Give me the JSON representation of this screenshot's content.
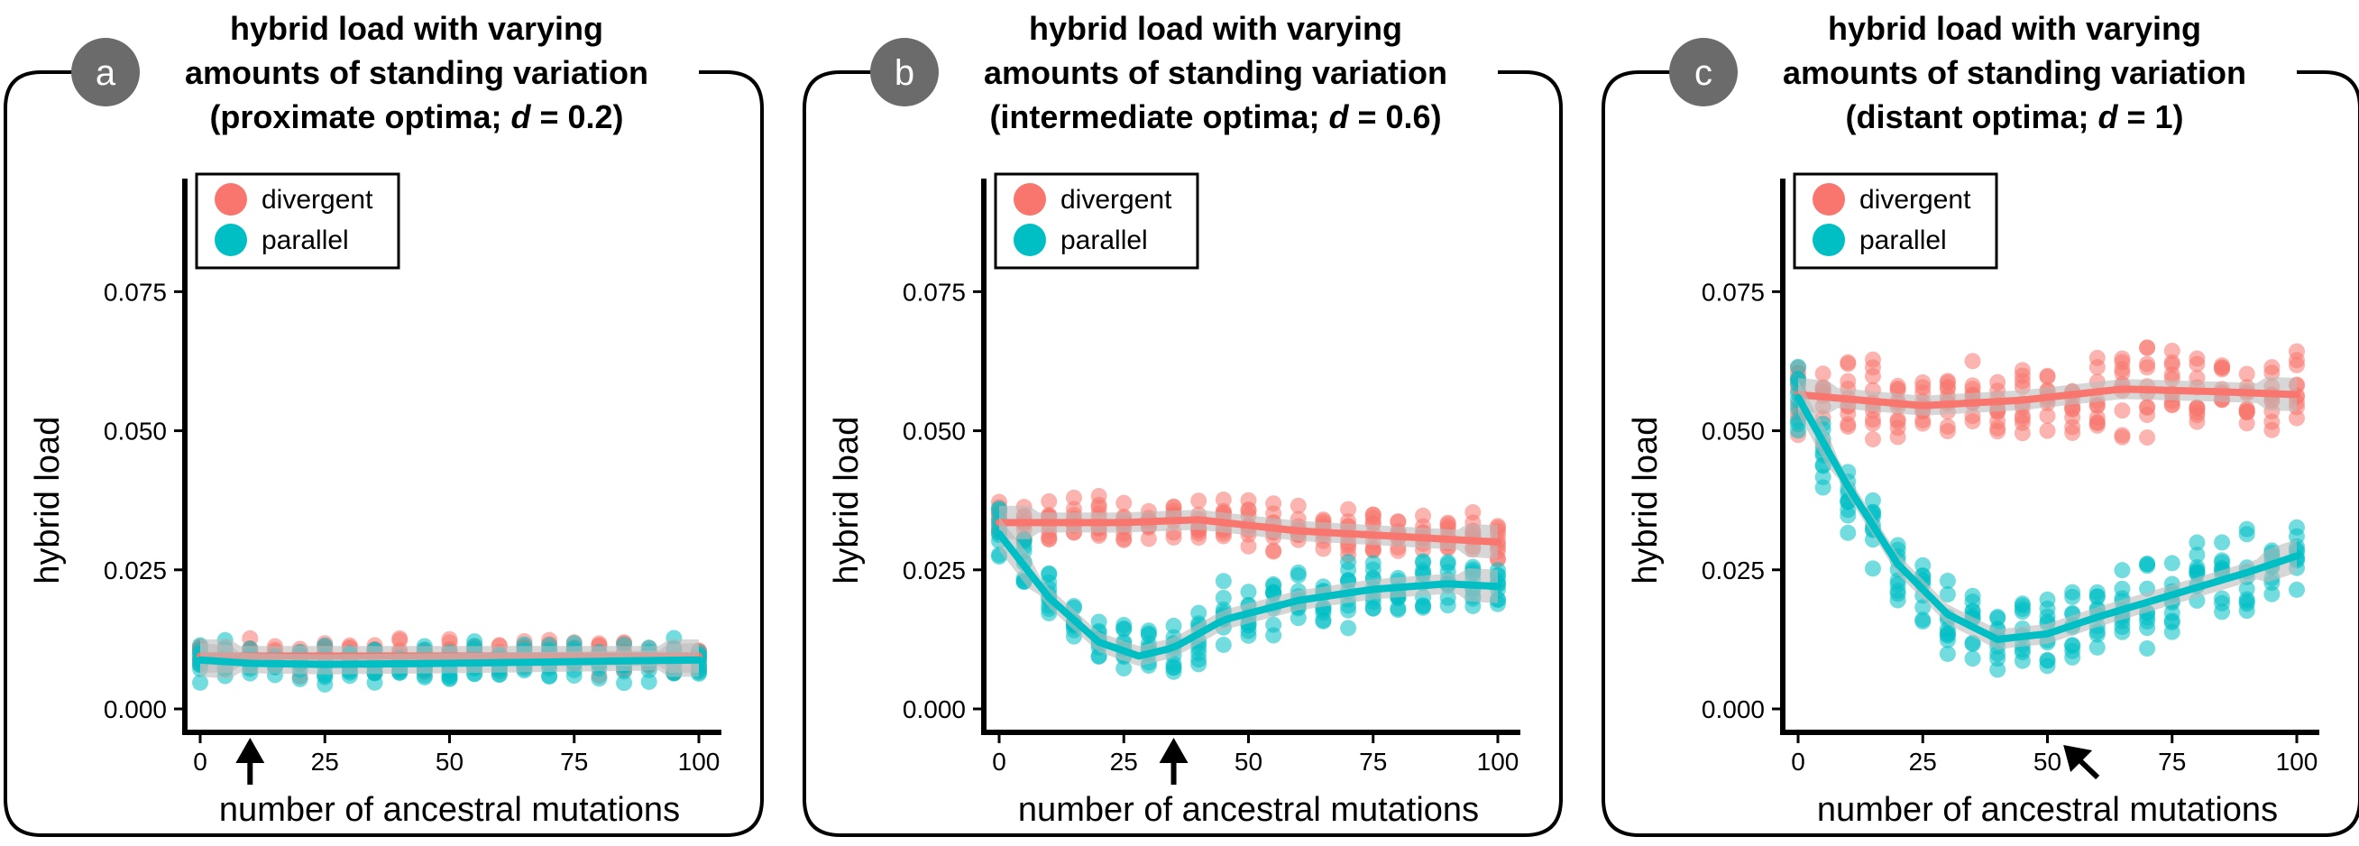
{
  "colors": {
    "divergent": "#F8766D",
    "parallel": "#00BFC4",
    "badge": "#6b6b6b",
    "ribbon": "#bdbdbd"
  },
  "panels": [
    {
      "badge": "a",
      "title_line1": "hybrid load with varying",
      "title_line2": "amounts of standing variation",
      "title_line3_prefix": "(proximate optima; ",
      "title_line3_var": "d",
      "title_line3_suffix": " = 0.2)",
      "arrow": "up",
      "arrow_x": 10
    },
    {
      "badge": "b",
      "title_line1": "hybrid load with varying",
      "title_line2": "amounts of standing variation",
      "title_line3_prefix": "(intermediate optima; ",
      "title_line3_var": "d",
      "title_line3_suffix": " = 0.6)",
      "arrow": "up",
      "arrow_x": 35
    },
    {
      "badge": "c",
      "title_line1": "hybrid load with varying",
      "title_line2": "amounts of standing variation",
      "title_line3_prefix": "(distant optima; ",
      "title_line3_var": "d",
      "title_line3_suffix": " = 1)",
      "arrow": "diagonal",
      "arrow_x": 55
    }
  ],
  "chart_data": [
    {
      "type": "scatter",
      "xlabel": "number of ancestral mutations",
      "ylabel": "hybrid load",
      "xlim": [
        0,
        100
      ],
      "ylim": [
        0,
        0.095
      ],
      "x_ticks": [
        "0",
        "25",
        "50",
        "75",
        "100"
      ],
      "y_ticks": [
        "0.000",
        "0.025",
        "0.050",
        "0.075"
      ],
      "legend": [
        "divergent",
        "parallel"
      ],
      "legend_position": "top-left",
      "grid": false,
      "series": [
        {
          "name": "divergent",
          "smooth": [
            [
              0,
              0.0095
            ],
            [
              25,
              0.0095
            ],
            [
              50,
              0.0095
            ],
            [
              75,
              0.0095
            ],
            [
              100,
              0.0095
            ]
          ],
          "x": [
            0,
            5,
            10,
            15,
            20,
            25,
            30,
            35,
            40,
            45,
            50,
            55,
            60,
            65,
            70,
            75,
            80,
            85,
            90,
            95,
            100
          ],
          "center": [
            0.0095,
            0.0095,
            0.0095,
            0.0095,
            0.0095,
            0.0095,
            0.0095,
            0.0095,
            0.0095,
            0.0095,
            0.0095,
            0.0095,
            0.0095,
            0.0095,
            0.0095,
            0.0095,
            0.0095,
            0.0095,
            0.0095,
            0.0095,
            0.0095
          ],
          "spread": 0.004
        },
        {
          "name": "parallel",
          "smooth": [
            [
              0,
              0.0088
            ],
            [
              10,
              0.0082
            ],
            [
              25,
              0.008
            ],
            [
              50,
              0.0082
            ],
            [
              75,
              0.0085
            ],
            [
              100,
              0.0088
            ]
          ],
          "x": [
            0,
            5,
            10,
            15,
            20,
            25,
            30,
            35,
            40,
            45,
            50,
            55,
            60,
            65,
            70,
            75,
            80,
            85,
            90,
            95,
            100
          ],
          "center": [
            0.0088,
            0.0085,
            0.0082,
            0.008,
            0.008,
            0.008,
            0.008,
            0.0081,
            0.0081,
            0.0082,
            0.0082,
            0.0083,
            0.0083,
            0.0084,
            0.0084,
            0.0085,
            0.0086,
            0.0086,
            0.0087,
            0.0087,
            0.0088
          ],
          "spread": 0.0045
        }
      ]
    },
    {
      "type": "scatter",
      "xlabel": "number of ancestral mutations",
      "ylabel": "hybrid load",
      "xlim": [
        0,
        100
      ],
      "ylim": [
        0,
        0.095
      ],
      "x_ticks": [
        "0",
        "25",
        "50",
        "75",
        "100"
      ],
      "y_ticks": [
        "0.000",
        "0.025",
        "0.050",
        "0.075"
      ],
      "legend": [
        "divergent",
        "parallel"
      ],
      "legend_position": "top-left",
      "grid": false,
      "series": [
        {
          "name": "divergent",
          "smooth": [
            [
              0,
              0.0335
            ],
            [
              25,
              0.0335
            ],
            [
              40,
              0.034
            ],
            [
              60,
              0.032
            ],
            [
              80,
              0.031
            ],
            [
              100,
              0.03
            ]
          ],
          "x": [
            0,
            5,
            10,
            15,
            20,
            25,
            30,
            35,
            40,
            45,
            50,
            55,
            60,
            65,
            70,
            75,
            80,
            85,
            90,
            95,
            100
          ],
          "center": [
            0.0335,
            0.0335,
            0.0335,
            0.0335,
            0.0335,
            0.0335,
            0.0337,
            0.034,
            0.034,
            0.0335,
            0.033,
            0.0325,
            0.032,
            0.0318,
            0.0315,
            0.0312,
            0.031,
            0.0308,
            0.0305,
            0.0302,
            0.03
          ],
          "spread": 0.006
        },
        {
          "name": "parallel",
          "smooth": [
            [
              0,
              0.0315
            ],
            [
              10,
              0.02
            ],
            [
              20,
              0.012
            ],
            [
              28,
              0.0095
            ],
            [
              35,
              0.011
            ],
            [
              45,
              0.016
            ],
            [
              60,
              0.0195
            ],
            [
              75,
              0.0215
            ],
            [
              90,
              0.0225
            ],
            [
              100,
              0.022
            ]
          ],
          "x": [
            0,
            5,
            10,
            15,
            20,
            25,
            30,
            35,
            40,
            45,
            50,
            55,
            60,
            65,
            70,
            75,
            80,
            85,
            90,
            95,
            100
          ],
          "center": [
            0.0315,
            0.025,
            0.02,
            0.0155,
            0.012,
            0.01,
            0.0097,
            0.011,
            0.0135,
            0.016,
            0.0175,
            0.0185,
            0.0195,
            0.0205,
            0.021,
            0.0215,
            0.022,
            0.0222,
            0.0225,
            0.0223,
            0.022
          ],
          "spread": 0.008
        }
      ]
    },
    {
      "type": "scatter",
      "xlabel": "number of ancestral mutations",
      "ylabel": "hybrid load",
      "xlim": [
        0,
        100
      ],
      "ylim": [
        0,
        0.095
      ],
      "x_ticks": [
        "0",
        "25",
        "50",
        "75",
        "100"
      ],
      "y_ticks": [
        "0.000",
        "0.025",
        "0.050",
        "0.075"
      ],
      "legend": [
        "divergent",
        "parallel"
      ],
      "legend_position": "top-left",
      "grid": false,
      "series": [
        {
          "name": "divergent",
          "smooth": [
            [
              0,
              0.0565
            ],
            [
              25,
              0.0545
            ],
            [
              45,
              0.0555
            ],
            [
              65,
              0.0575
            ],
            [
              85,
              0.057
            ],
            [
              100,
              0.0565
            ]
          ],
          "x": [
            0,
            5,
            10,
            15,
            20,
            25,
            30,
            35,
            40,
            45,
            50,
            55,
            60,
            65,
            70,
            75,
            80,
            85,
            90,
            95,
            100
          ],
          "center": [
            0.0565,
            0.0558,
            0.0552,
            0.0548,
            0.0545,
            0.0545,
            0.0545,
            0.0548,
            0.0552,
            0.0555,
            0.0558,
            0.0565,
            0.057,
            0.0575,
            0.0575,
            0.0575,
            0.0572,
            0.057,
            0.0568,
            0.0566,
            0.0565
          ],
          "spread": 0.01
        },
        {
          "name": "parallel",
          "smooth": [
            [
              0,
              0.056
            ],
            [
              10,
              0.04
            ],
            [
              20,
              0.026
            ],
            [
              30,
              0.017
            ],
            [
              40,
              0.0125
            ],
            [
              50,
              0.0135
            ],
            [
              60,
              0.0165
            ],
            [
              75,
              0.0205
            ],
            [
              90,
              0.0245
            ],
            [
              100,
              0.0275
            ]
          ],
          "x": [
            0,
            5,
            10,
            15,
            20,
            25,
            30,
            35,
            40,
            45,
            50,
            55,
            60,
            65,
            70,
            75,
            80,
            85,
            90,
            95,
            100
          ],
          "center": [
            0.056,
            0.047,
            0.04,
            0.033,
            0.026,
            0.021,
            0.017,
            0.014,
            0.0125,
            0.0128,
            0.0135,
            0.015,
            0.0165,
            0.018,
            0.0192,
            0.0205,
            0.0218,
            0.023,
            0.0245,
            0.026,
            0.0275
          ],
          "spread": 0.012
        }
      ]
    }
  ]
}
